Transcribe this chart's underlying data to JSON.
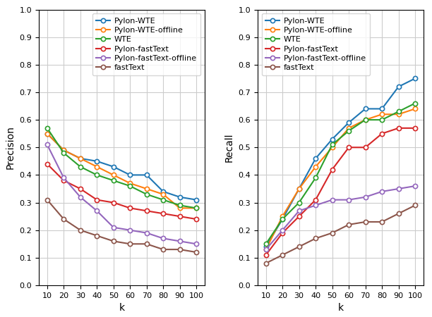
{
  "k": [
    10,
    20,
    30,
    40,
    50,
    60,
    70,
    80,
    90,
    100
  ],
  "precision": {
    "Pylon-WTE": [
      0.55,
      0.49,
      0.46,
      0.45,
      0.43,
      0.4,
      0.4,
      0.34,
      0.32,
      0.31
    ],
    "Pylon-WTE-offline": [
      0.55,
      0.49,
      0.46,
      0.43,
      0.4,
      0.37,
      0.35,
      0.33,
      0.28,
      0.28
    ],
    "WTE": [
      0.57,
      0.48,
      0.43,
      0.4,
      0.38,
      0.36,
      0.33,
      0.31,
      0.29,
      0.28
    ],
    "Pylon-fastText": [
      0.44,
      0.38,
      0.35,
      0.31,
      0.3,
      0.28,
      0.27,
      0.26,
      0.25,
      0.24
    ],
    "Pylon-fastText-offline": [
      0.51,
      0.39,
      0.32,
      0.27,
      0.21,
      0.2,
      0.19,
      0.17,
      0.16,
      0.15
    ],
    "fastText": [
      0.31,
      0.24,
      0.2,
      0.18,
      0.16,
      0.15,
      0.15,
      0.13,
      0.13,
      0.12
    ]
  },
  "recall": {
    "Pylon-WTE": [
      0.14,
      0.24,
      0.35,
      0.46,
      0.53,
      0.59,
      0.64,
      0.64,
      0.72,
      0.75
    ],
    "Pylon-WTE-offline": [
      0.13,
      0.25,
      0.35,
      0.43,
      0.5,
      0.57,
      0.6,
      0.62,
      0.62,
      0.64
    ],
    "WTE": [
      0.15,
      0.24,
      0.3,
      0.39,
      0.51,
      0.56,
      0.6,
      0.6,
      0.63,
      0.66
    ],
    "Pylon-fastText": [
      0.11,
      0.19,
      0.25,
      0.31,
      0.42,
      0.5,
      0.5,
      0.55,
      0.57,
      0.57
    ],
    "Pylon-fastText-offline": [
      0.13,
      0.2,
      0.27,
      0.29,
      0.31,
      0.31,
      0.32,
      0.34,
      0.35,
      0.36
    ],
    "fastText": [
      0.08,
      0.11,
      0.14,
      0.17,
      0.19,
      0.22,
      0.23,
      0.23,
      0.26,
      0.29
    ]
  },
  "colors": {
    "Pylon-WTE": "#1f77b4",
    "Pylon-WTE-offline": "#ff7f0e",
    "WTE": "#2ca02c",
    "Pylon-fastText": "#d62728",
    "Pylon-fastText-offline": "#9467bd",
    "fastText": "#8c564b"
  },
  "series_order": [
    "Pylon-WTE",
    "Pylon-WTE-offline",
    "WTE",
    "Pylon-fastText",
    "Pylon-fastText-offline",
    "fastText"
  ]
}
